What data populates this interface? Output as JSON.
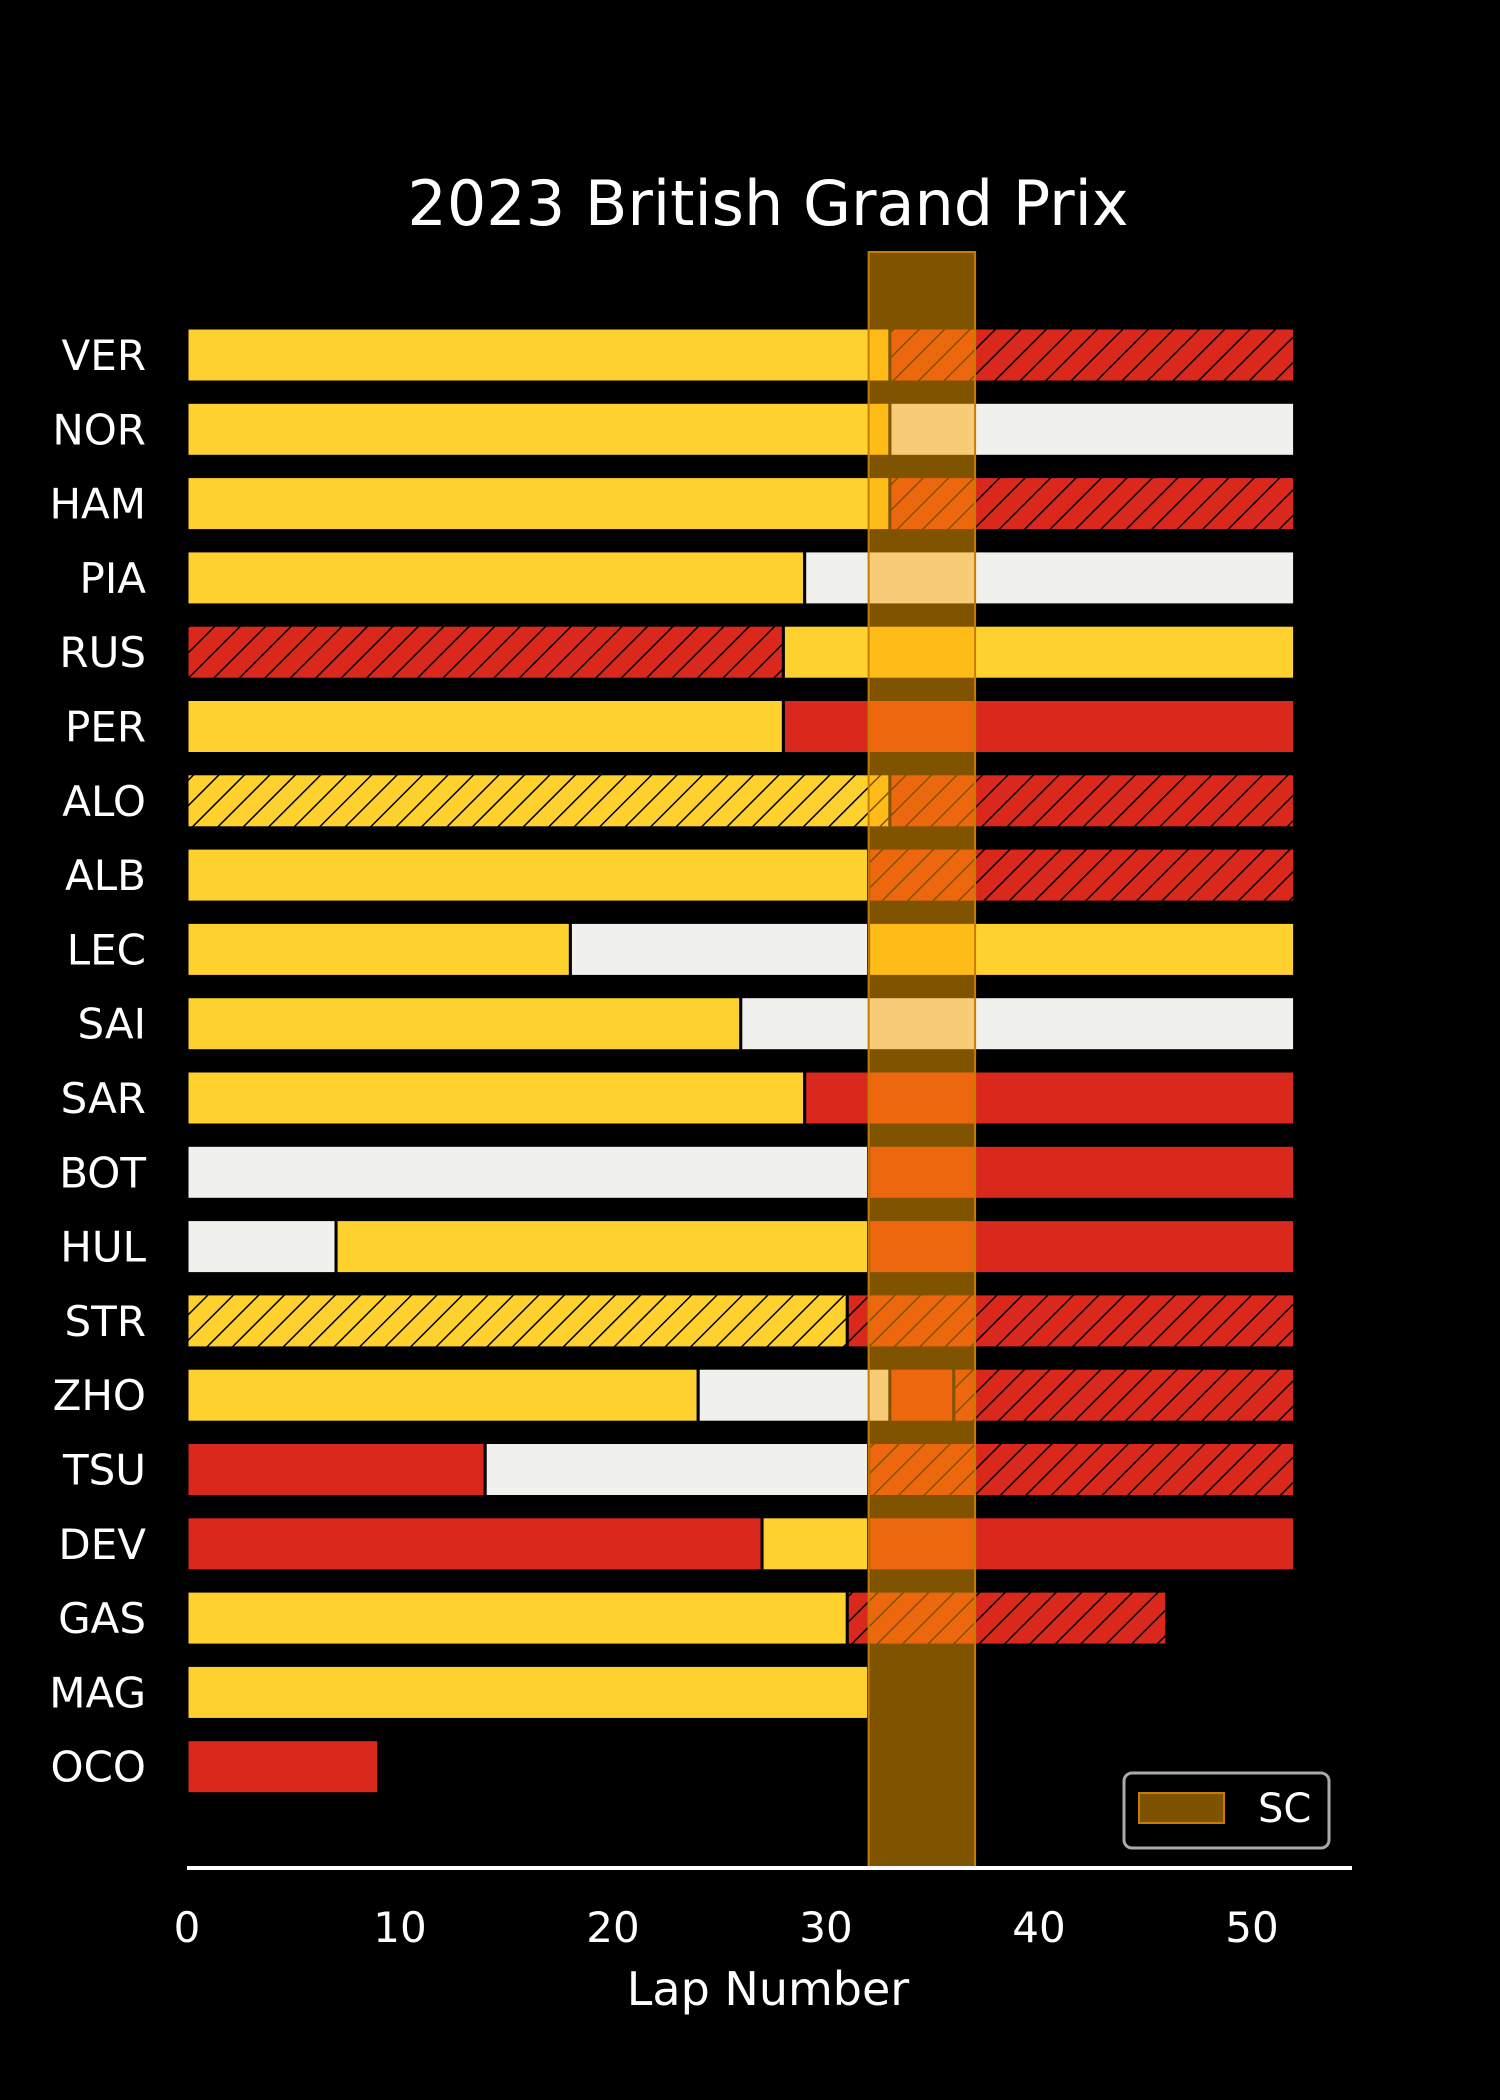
{
  "chart_data": {
    "type": "bar",
    "orientation": "horizontal-stacked",
    "title": "2023 British Grand Prix",
    "xlabel": "Lap Number",
    "ylabel": "",
    "xlim": [
      0,
      55
    ],
    "xticks": [
      0,
      10,
      20,
      30,
      40,
      50
    ],
    "grid": false,
    "legend": {
      "placement": "bottom-right",
      "entries": [
        {
          "label": "SC",
          "color": "#7f5200"
        }
      ]
    },
    "safety_car": {
      "label": "SC",
      "start_lap": 32,
      "end_lap": 37
    },
    "compound_colors": {
      "SOFT": "#da291c",
      "MEDIUM": "#ffd12e",
      "HARD": "#f0f0ec"
    },
    "drivers": [
      {
        "name": "VER",
        "stints": [
          {
            "compound": "MEDIUM",
            "start": 0,
            "end": 33,
            "used": false
          },
          {
            "compound": "SOFT",
            "start": 33,
            "end": 52,
            "used": true
          }
        ]
      },
      {
        "name": "NOR",
        "stints": [
          {
            "compound": "MEDIUM",
            "start": 0,
            "end": 33,
            "used": false
          },
          {
            "compound": "HARD",
            "start": 33,
            "end": 52,
            "used": false
          }
        ]
      },
      {
        "name": "HAM",
        "stints": [
          {
            "compound": "MEDIUM",
            "start": 0,
            "end": 33,
            "used": false
          },
          {
            "compound": "SOFT",
            "start": 33,
            "end": 52,
            "used": true
          }
        ]
      },
      {
        "name": "PIA",
        "stints": [
          {
            "compound": "MEDIUM",
            "start": 0,
            "end": 29,
            "used": false
          },
          {
            "compound": "HARD",
            "start": 29,
            "end": 52,
            "used": false
          }
        ]
      },
      {
        "name": "RUS",
        "stints": [
          {
            "compound": "SOFT",
            "start": 0,
            "end": 28,
            "used": true
          },
          {
            "compound": "MEDIUM",
            "start": 28,
            "end": 52,
            "used": false
          }
        ]
      },
      {
        "name": "PER",
        "stints": [
          {
            "compound": "MEDIUM",
            "start": 0,
            "end": 28,
            "used": false
          },
          {
            "compound": "SOFT",
            "start": 28,
            "end": 52,
            "used": false
          }
        ]
      },
      {
        "name": "ALO",
        "stints": [
          {
            "compound": "MEDIUM",
            "start": 0,
            "end": 33,
            "used": true
          },
          {
            "compound": "SOFT",
            "start": 33,
            "end": 52,
            "used": true
          }
        ]
      },
      {
        "name": "ALB",
        "stints": [
          {
            "compound": "MEDIUM",
            "start": 0,
            "end": 32,
            "used": false
          },
          {
            "compound": "SOFT",
            "start": 32,
            "end": 52,
            "used": true
          }
        ]
      },
      {
        "name": "LEC",
        "stints": [
          {
            "compound": "MEDIUM",
            "start": 0,
            "end": 18,
            "used": false
          },
          {
            "compound": "HARD",
            "start": 18,
            "end": 32,
            "used": false
          },
          {
            "compound": "MEDIUM",
            "start": 32,
            "end": 52,
            "used": false
          }
        ]
      },
      {
        "name": "SAI",
        "stints": [
          {
            "compound": "MEDIUM",
            "start": 0,
            "end": 26,
            "used": false
          },
          {
            "compound": "HARD",
            "start": 26,
            "end": 52,
            "used": false
          }
        ]
      },
      {
        "name": "SAR",
        "stints": [
          {
            "compound": "MEDIUM",
            "start": 0,
            "end": 29,
            "used": false
          },
          {
            "compound": "SOFT",
            "start": 29,
            "end": 52,
            "used": false
          }
        ]
      },
      {
        "name": "BOT",
        "stints": [
          {
            "compound": "HARD",
            "start": 0,
            "end": 32,
            "used": false
          },
          {
            "compound": "SOFT",
            "start": 32,
            "end": 52,
            "used": false
          }
        ]
      },
      {
        "name": "HUL",
        "stints": [
          {
            "compound": "HARD",
            "start": 0,
            "end": 7,
            "used": false
          },
          {
            "compound": "MEDIUM",
            "start": 7,
            "end": 32,
            "used": false
          },
          {
            "compound": "SOFT",
            "start": 32,
            "end": 52,
            "used": false
          }
        ]
      },
      {
        "name": "STR",
        "stints": [
          {
            "compound": "MEDIUM",
            "start": 0,
            "end": 31,
            "used": true
          },
          {
            "compound": "SOFT",
            "start": 31,
            "end": 52,
            "used": true
          }
        ]
      },
      {
        "name": "ZHO",
        "stints": [
          {
            "compound": "MEDIUM",
            "start": 0,
            "end": 24,
            "used": false
          },
          {
            "compound": "HARD",
            "start": 24,
            "end": 33,
            "used": false
          },
          {
            "compound": "SOFT",
            "start": 33,
            "end": 36,
            "used": false
          },
          {
            "compound": "SOFT",
            "start": 36,
            "end": 52,
            "used": true
          }
        ]
      },
      {
        "name": "TSU",
        "stints": [
          {
            "compound": "SOFT",
            "start": 0,
            "end": 14,
            "used": false
          },
          {
            "compound": "HARD",
            "start": 14,
            "end": 32,
            "used": false
          },
          {
            "compound": "SOFT",
            "start": 32,
            "end": 52,
            "used": true
          }
        ]
      },
      {
        "name": "DEV",
        "stints": [
          {
            "compound": "SOFT",
            "start": 0,
            "end": 27,
            "used": false
          },
          {
            "compound": "MEDIUM",
            "start": 27,
            "end": 32,
            "used": false
          },
          {
            "compound": "SOFT",
            "start": 32,
            "end": 52,
            "used": false
          }
        ]
      },
      {
        "name": "GAS",
        "stints": [
          {
            "compound": "MEDIUM",
            "start": 0,
            "end": 31,
            "used": false
          },
          {
            "compound": "SOFT",
            "start": 31,
            "end": 46,
            "used": true
          }
        ]
      },
      {
        "name": "MAG",
        "stints": [
          {
            "compound": "MEDIUM",
            "start": 0,
            "end": 32,
            "used": false
          }
        ]
      },
      {
        "name": "OCO",
        "stints": [
          {
            "compound": "SOFT",
            "start": 0,
            "end": 9,
            "used": false
          }
        ]
      }
    ]
  }
}
